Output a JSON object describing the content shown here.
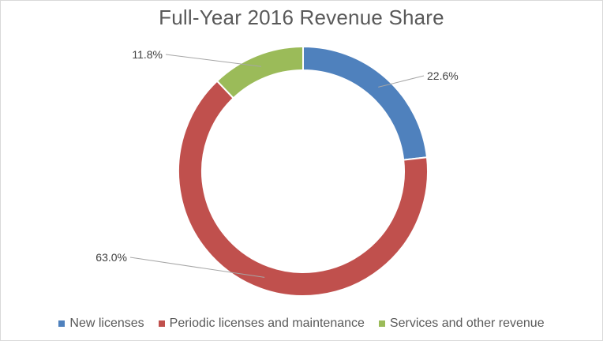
{
  "chart_data": {
    "type": "pie",
    "variant": "doughnut",
    "title": "Full-Year 2016 Revenue Share",
    "legend_position": "bottom",
    "slices": [
      {
        "label": "New licenses",
        "value": 22.6,
        "value_label": "22.6%",
        "color": "#4f81bd"
      },
      {
        "label": "Periodic licenses and maintenance",
        "value": 63.0,
        "value_label": "63.0%",
        "color": "#c0504d"
      },
      {
        "label": "Services and other revenue",
        "value": 11.8,
        "value_label": "11.8%",
        "color": "#9bbb59"
      }
    ]
  }
}
